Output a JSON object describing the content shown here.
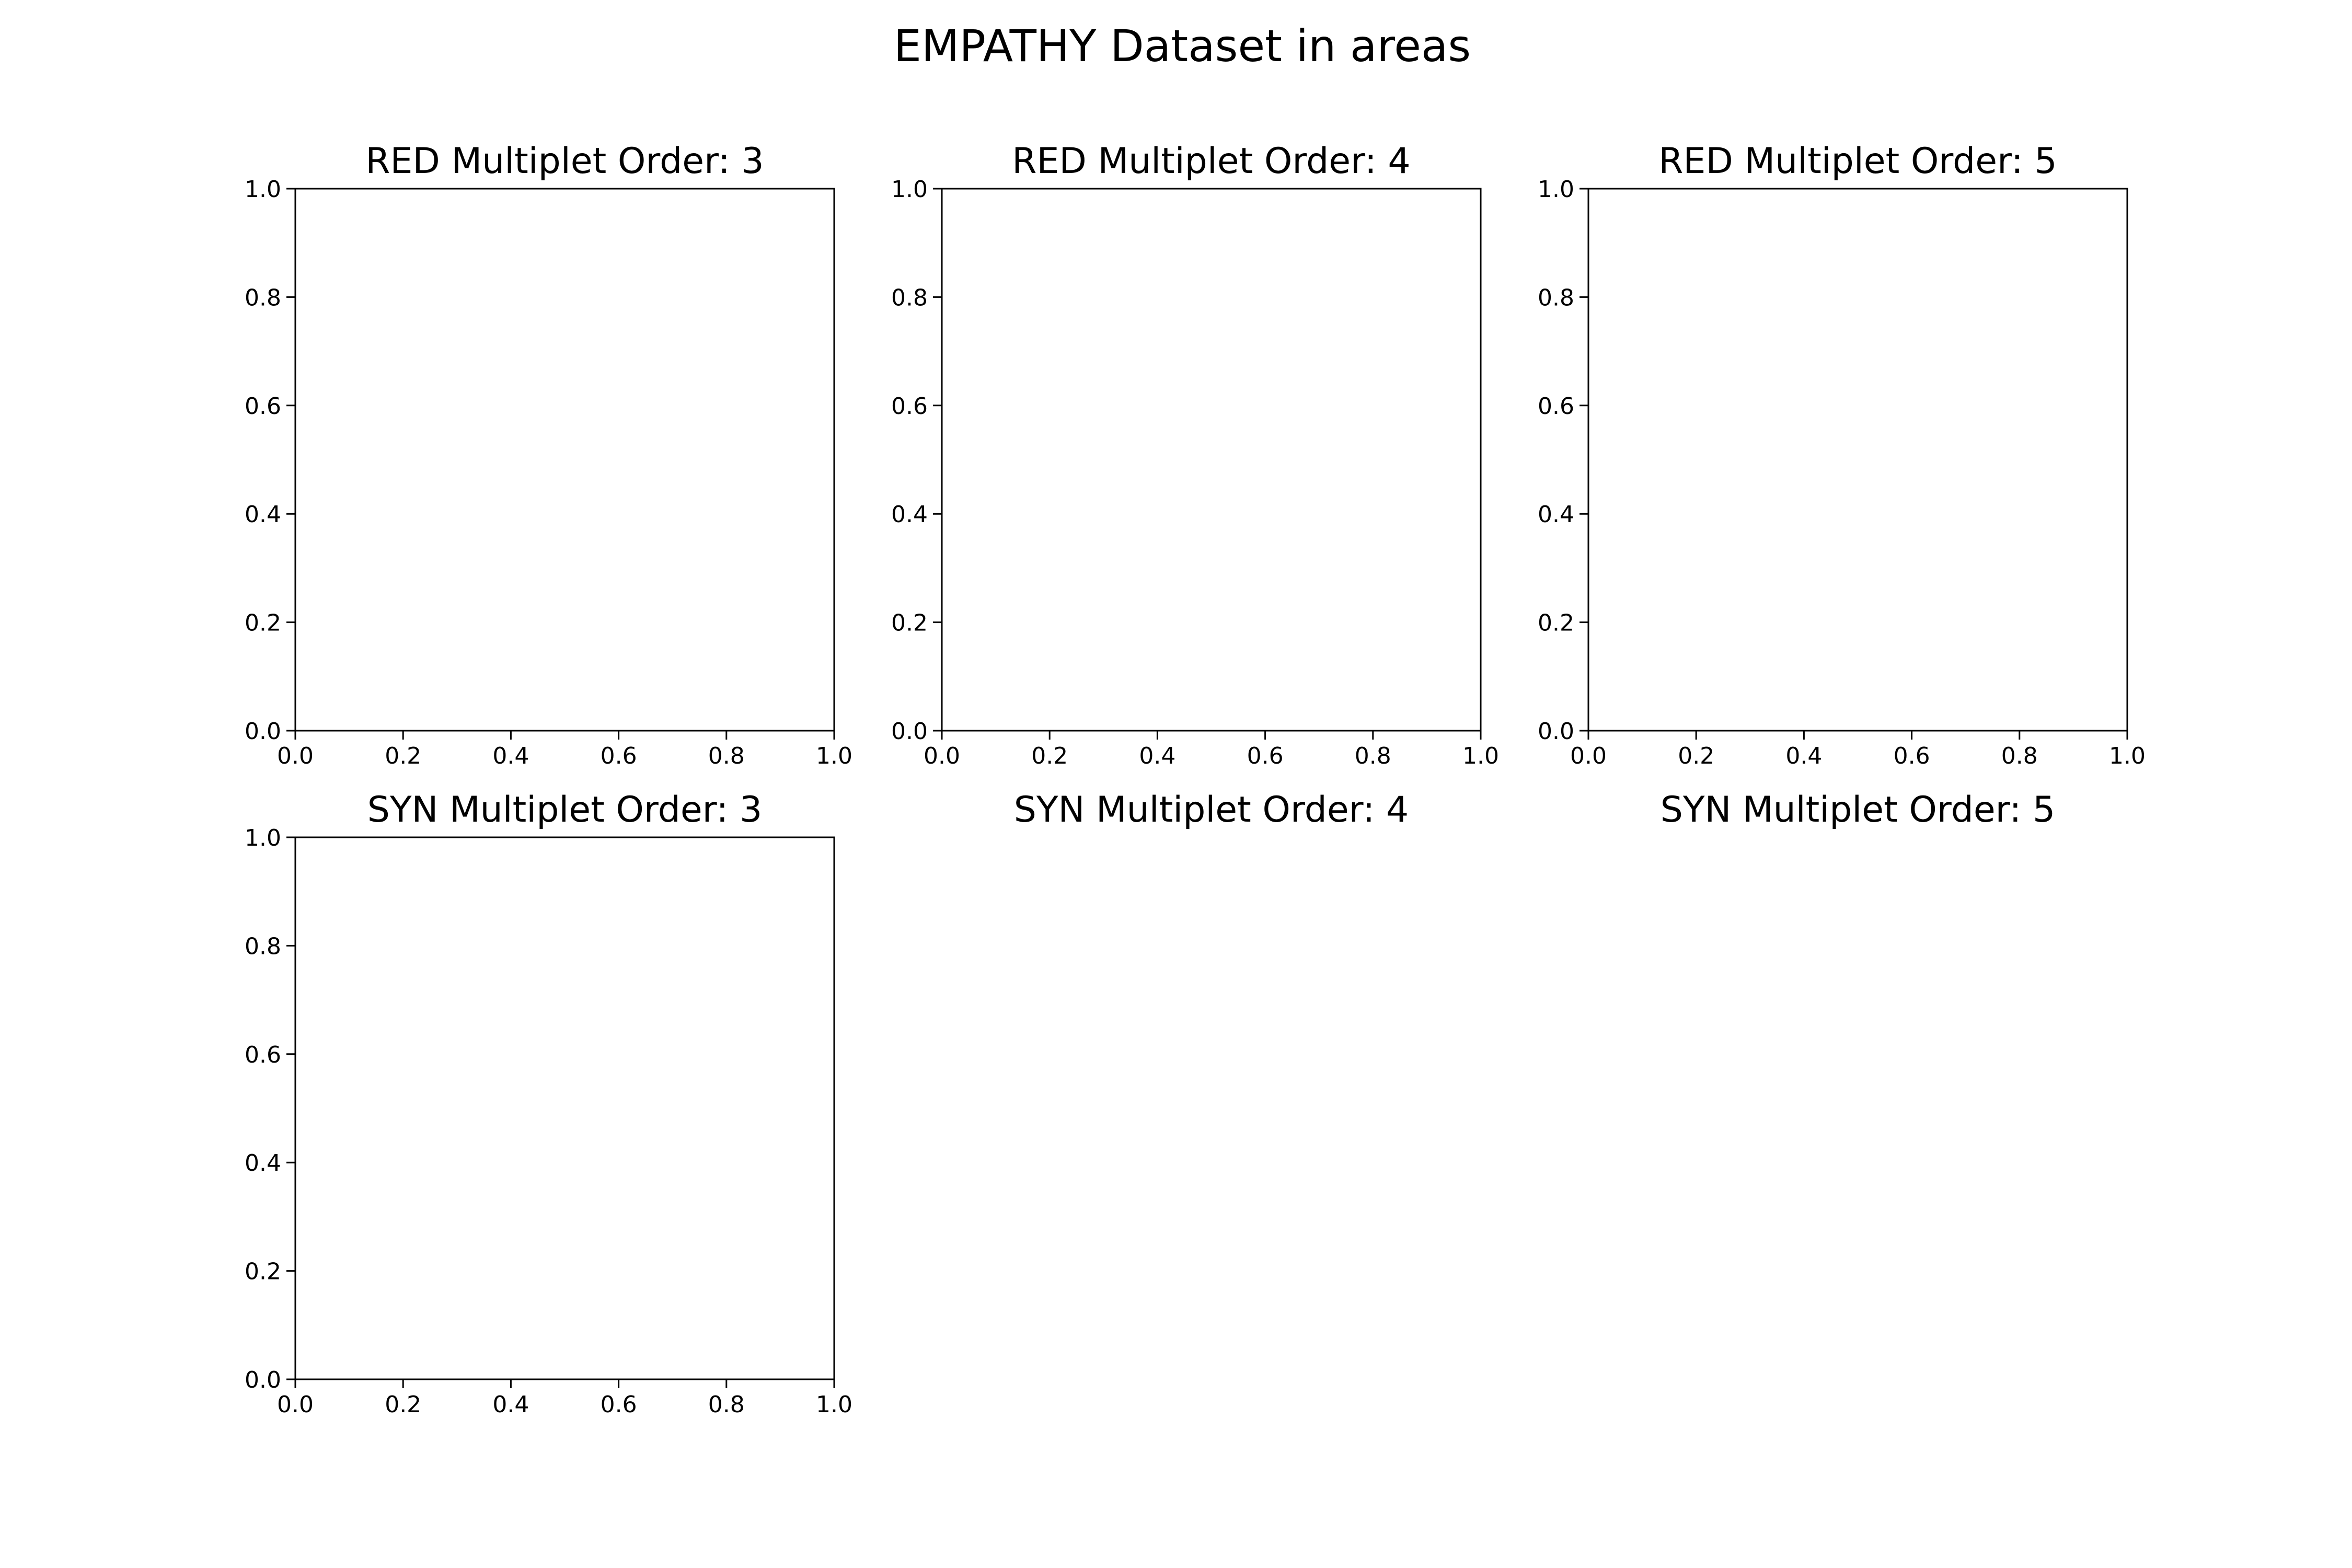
{
  "figure": {
    "title": "EMPATHY Dataset in areas"
  },
  "chart_data": [
    {
      "type": "scatter",
      "title": "RED Multiplet Order: 3",
      "xlim": [
        0.0,
        1.0
      ],
      "ylim": [
        0.0,
        1.0
      ],
      "xticks": [
        "0.0",
        "0.2",
        "0.4",
        "0.6",
        "0.8",
        "1.0"
      ],
      "yticks": [
        "0.0",
        "0.2",
        "0.4",
        "0.6",
        "0.8",
        "1.0"
      ],
      "axes_visible": true,
      "series": [],
      "grid": false
    },
    {
      "type": "scatter",
      "title": "RED Multiplet Order: 4",
      "xlim": [
        0.0,
        1.0
      ],
      "ylim": [
        0.0,
        1.0
      ],
      "xticks": [
        "0.0",
        "0.2",
        "0.4",
        "0.6",
        "0.8",
        "1.0"
      ],
      "yticks": [
        "0.0",
        "0.2",
        "0.4",
        "0.6",
        "0.8",
        "1.0"
      ],
      "axes_visible": true,
      "series": [],
      "grid": false
    },
    {
      "type": "scatter",
      "title": "RED Multiplet Order: 5",
      "xlim": [
        0.0,
        1.0
      ],
      "ylim": [
        0.0,
        1.0
      ],
      "xticks": [
        "0.0",
        "0.2",
        "0.4",
        "0.6",
        "0.8",
        "1.0"
      ],
      "yticks": [
        "0.0",
        "0.2",
        "0.4",
        "0.6",
        "0.8",
        "1.0"
      ],
      "axes_visible": true,
      "series": [],
      "grid": false
    },
    {
      "type": "scatter",
      "title": "SYN Multiplet Order: 3",
      "xlim": [
        0.0,
        1.0
      ],
      "ylim": [
        0.0,
        1.0
      ],
      "xticks": [
        "0.0",
        "0.2",
        "0.4",
        "0.6",
        "0.8",
        "1.0"
      ],
      "yticks": [
        "0.0",
        "0.2",
        "0.4",
        "0.6",
        "0.8",
        "1.0"
      ],
      "axes_visible": true,
      "series": [],
      "grid": false
    },
    {
      "type": "scatter",
      "title": "SYN Multiplet Order: 4",
      "axes_visible": false,
      "series": []
    },
    {
      "type": "scatter",
      "title": "SYN Multiplet Order: 5",
      "axes_visible": false,
      "series": []
    }
  ]
}
